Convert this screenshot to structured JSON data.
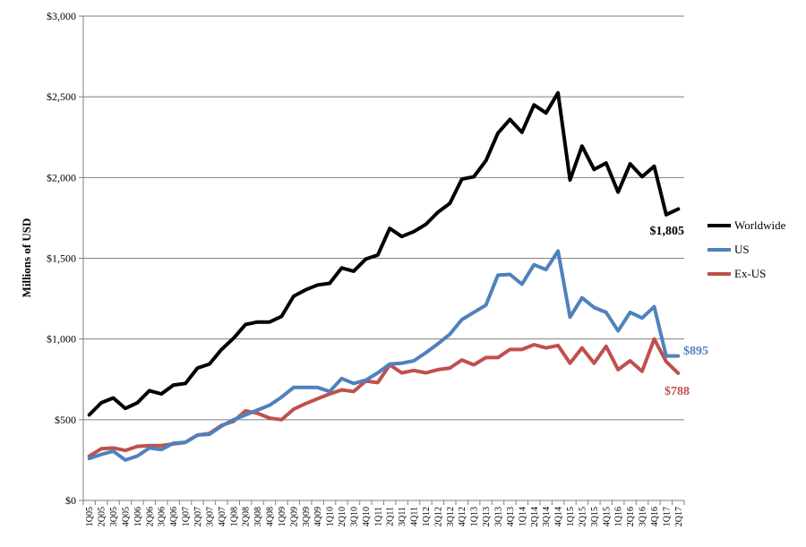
{
  "chart_data": {
    "type": "line",
    "title": "",
    "xlabel": "",
    "ylabel": "Millions of USD",
    "ylim": [
      0,
      3000
    ],
    "yticks": [
      0,
      500,
      1000,
      1500,
      2000,
      2500,
      3000
    ],
    "ytick_labels": [
      "$0",
      "$500",
      "$1,000",
      "$1,500",
      "$2,000",
      "$2,500",
      "$3,000"
    ],
    "grid": true,
    "legend_position": "right",
    "x": [
      "1Q05",
      "2Q05",
      "3Q05",
      "4Q05",
      "1Q06",
      "2Q06",
      "3Q06",
      "4Q06",
      "1Q07",
      "2Q07",
      "3Q07",
      "4Q07",
      "1Q08",
      "2Q08",
      "3Q08",
      "4Q08",
      "1Q09",
      "2Q09",
      "3Q09",
      "4Q09",
      "1Q10",
      "2Q10",
      "3Q10",
      "4Q10",
      "1Q11",
      "2Q11",
      "3Q11",
      "4Q11",
      "1Q12",
      "2Q12",
      "3Q12",
      "4Q12",
      "1Q13",
      "2Q13",
      "3Q13",
      "4Q13",
      "1Q14",
      "2Q14",
      "3Q14",
      "4Q14",
      "1Q15",
      "2Q15",
      "3Q15",
      "4Q15",
      "1Q16",
      "2Q16",
      "3Q16",
      "4Q16",
      "1Q17",
      "2Q17"
    ],
    "series": [
      {
        "name": "Worldwide",
        "color": "#000000",
        "end_label": "$1,805",
        "values": [
          530,
          605,
          635,
          570,
          605,
          680,
          660,
          715,
          725,
          820,
          845,
          935,
          1005,
          1090,
          1105,
          1105,
          1140,
          1265,
          1305,
          1335,
          1345,
          1440,
          1420,
          1495,
          1520,
          1685,
          1635,
          1665,
          1710,
          1785,
          1840,
          1990,
          2005,
          2105,
          2275,
          2360,
          2280,
          2450,
          2400,
          2525,
          1985,
          2195,
          2050,
          2090,
          1910,
          2085,
          2005,
          2070,
          1770,
          1805
        ]
      },
      {
        "name": "US",
        "color": "#4f81bd",
        "end_label": "$895",
        "values": [
          260,
          285,
          305,
          250,
          275,
          325,
          315,
          355,
          360,
          405,
          410,
          460,
          500,
          530,
          560,
          590,
          640,
          700,
          700,
          700,
          675,
          755,
          725,
          745,
          790,
          845,
          850,
          865,
          915,
          970,
          1030,
          1120,
          1165,
          1210,
          1395,
          1400,
          1340,
          1460,
          1430,
          1545,
          1135,
          1255,
          1195,
          1165,
          1050,
          1165,
          1130,
          1200,
          895,
          895
        ]
      },
      {
        "name": "Ex-US",
        "color": "#c0504d",
        "end_label": "$788",
        "values": [
          275,
          320,
          325,
          310,
          335,
          340,
          340,
          350,
          360,
          405,
          415,
          465,
          490,
          555,
          540,
          510,
          500,
          565,
          600,
          630,
          660,
          685,
          675,
          740,
          730,
          840,
          790,
          805,
          790,
          810,
          820,
          870,
          840,
          885,
          885,
          935,
          935,
          965,
          945,
          960,
          850,
          945,
          850,
          955,
          810,
          865,
          800,
          1000,
          860,
          788
        ]
      }
    ]
  }
}
